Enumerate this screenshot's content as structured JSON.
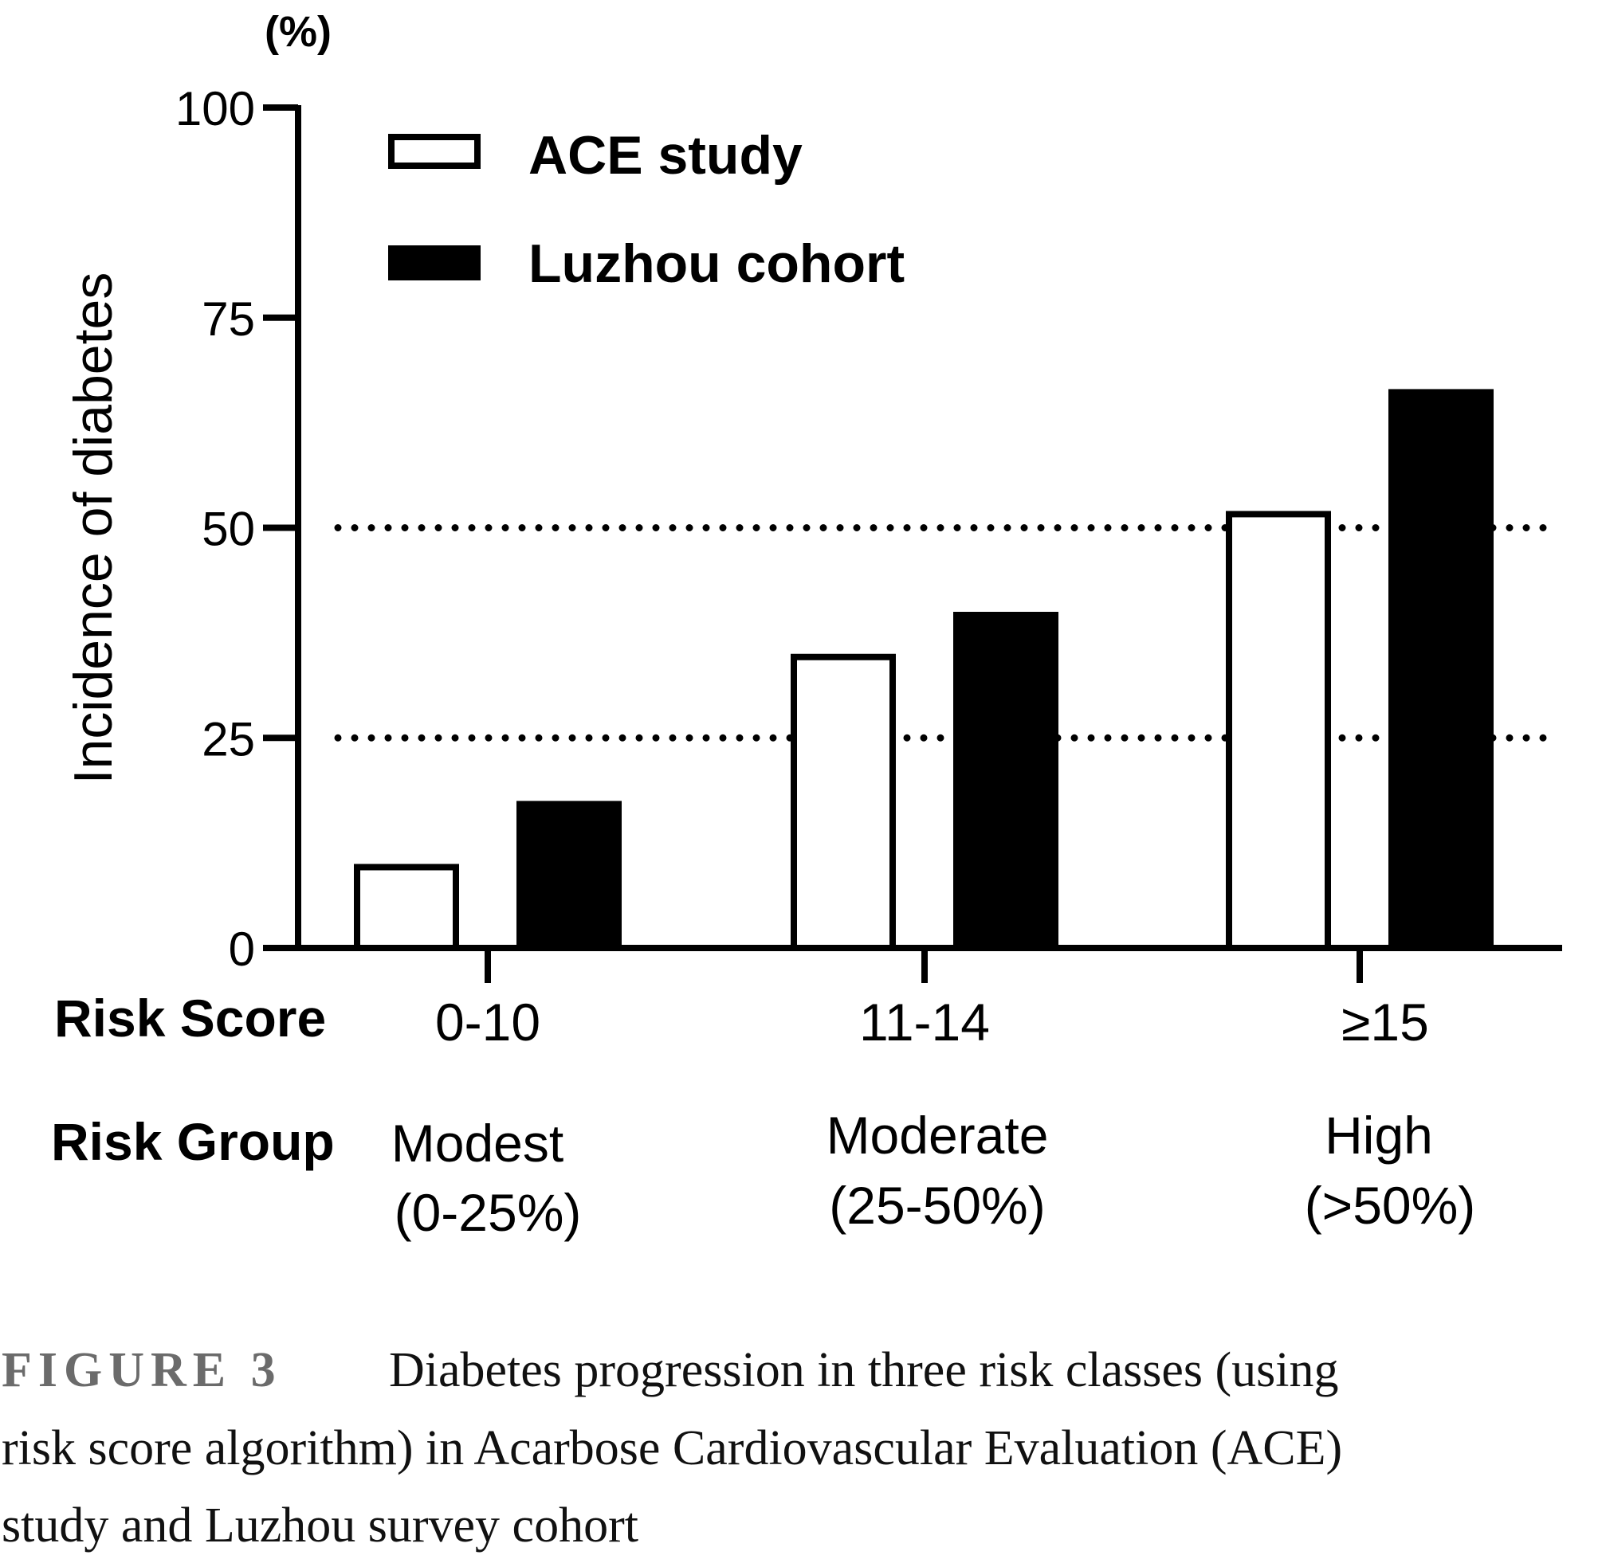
{
  "chart_data": {
    "type": "bar",
    "unit_label": "(%)",
    "ylabel": "Incidence of diabetes",
    "ylim": [
      0,
      100
    ],
    "yticks": [
      0,
      25,
      50,
      75,
      100
    ],
    "reference_lines": [
      25,
      50
    ],
    "reference_line_style": "dotted",
    "legend_position": "top-left",
    "categories": [
      "0-10",
      "11-14",
      "≥15"
    ],
    "series": [
      {
        "name": "ACE study",
        "fill": "#ffffff",
        "stroke": "#000000",
        "values": [
          10,
          35,
          52
        ]
      },
      {
        "name": "Luzhou cohort",
        "fill": "#000000",
        "stroke": "#000000",
        "values": [
          17.5,
          40,
          66.5
        ]
      }
    ],
    "row_headers": {
      "risk_score": "Risk Score",
      "risk_group": "Risk Group"
    },
    "risk_groups": [
      {
        "name": "Modest",
        "range": "(0-25%)"
      },
      {
        "name": "Moderate",
        "range": "(25-50%)"
      },
      {
        "name": "High",
        "range": "(>50%)"
      }
    ]
  },
  "caption": {
    "label": "FIGURE 3",
    "lines": [
      "Diabetes progression in three risk classes (using",
      "risk score algorithm) in Acarbose Cardiovascular Evaluation (ACE)",
      "study and Luzhou survey cohort"
    ]
  }
}
